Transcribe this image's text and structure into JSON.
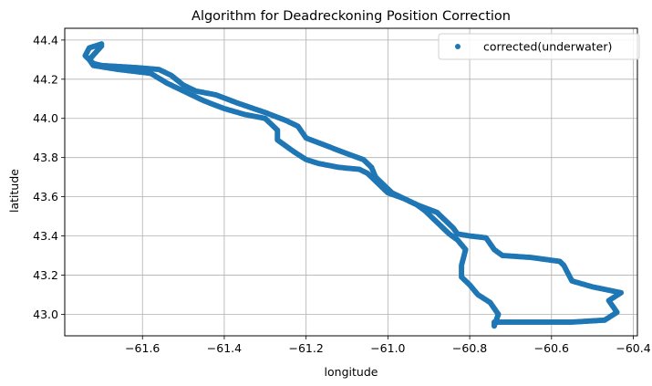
{
  "chart_data": {
    "type": "scatter",
    "title": "Algorithm for Deadreckoning Position Correction",
    "xlabel": "longitude",
    "ylabel": "latitude",
    "xlim": [
      -61.79,
      -60.39
    ],
    "ylim": [
      42.89,
      44.46
    ],
    "xticks": [
      -61.6,
      -61.4,
      -61.2,
      -61.0,
      -60.8,
      -60.6,
      -60.4
    ],
    "yticks": [
      43.0,
      43.2,
      43.4,
      43.6,
      43.8,
      44.0,
      44.2,
      44.4
    ],
    "xtick_labels": [
      "−61.6",
      "−61.4",
      "−61.2",
      "−61.0",
      "−60.8",
      "−60.6",
      "−60.4"
    ],
    "ytick_labels": [
      "43.0",
      "43.2",
      "43.4",
      "43.6",
      "43.8",
      "44.0",
      "44.2",
      "44.4"
    ],
    "grid": true,
    "legend_position": "top-right",
    "series": [
      {
        "name": "corrected(underwater)",
        "color": "#1f77b4",
        "x": [
          -61.7,
          -61.73,
          -61.74,
          -61.72,
          -61.7,
          -61.62,
          -61.56,
          -61.53,
          -61.5,
          -61.47,
          -61.42,
          -61.37,
          -61.3,
          -61.25,
          -61.22,
          -61.2,
          -61.15,
          -61.1,
          -61.06,
          -61.04,
          -61.03,
          -61.01,
          -60.99,
          -60.96,
          -60.93,
          -60.88,
          -60.86,
          -60.84,
          -60.83,
          -60.8,
          -60.76,
          -60.74,
          -60.72,
          -60.65,
          -60.58,
          -60.57,
          -60.55,
          -60.5,
          -60.43,
          -60.46,
          -60.44,
          -60.47,
          -60.55,
          -60.65,
          -60.74,
          -60.74,
          -60.73,
          -60.75,
          -60.78,
          -60.8,
          -60.82,
          -60.82,
          -60.81,
          -60.83,
          -60.85,
          -60.87,
          -60.91,
          -60.93,
          -60.96,
          -61.0,
          -61.02,
          -61.05,
          -61.07,
          -61.12,
          -61.17,
          -61.2,
          -61.23,
          -61.25,
          -61.27,
          -61.27,
          -61.3,
          -61.35,
          -61.4,
          -61.45,
          -61.48,
          -61.51,
          -61.54,
          -61.58,
          -61.66,
          -61.72,
          -61.73,
          -61.7
        ],
        "y": [
          44.38,
          44.36,
          44.32,
          44.28,
          44.27,
          44.26,
          44.25,
          44.22,
          44.17,
          44.14,
          44.12,
          44.08,
          44.03,
          43.99,
          43.96,
          43.9,
          43.86,
          43.82,
          43.79,
          43.75,
          43.7,
          43.66,
          43.62,
          43.59,
          43.56,
          43.52,
          43.48,
          43.44,
          43.41,
          43.4,
          43.39,
          43.33,
          43.3,
          43.29,
          43.27,
          43.25,
          43.17,
          43.14,
          43.11,
          43.07,
          43.01,
          42.97,
          42.96,
          42.96,
          42.96,
          42.94,
          43.0,
          43.06,
          43.1,
          43.15,
          43.19,
          43.25,
          43.33,
          43.38,
          43.41,
          43.45,
          43.53,
          43.56,
          43.59,
          43.62,
          43.66,
          43.72,
          43.74,
          43.75,
          43.77,
          43.79,
          43.83,
          43.86,
          43.89,
          43.94,
          44.0,
          44.02,
          44.05,
          44.09,
          44.12,
          44.15,
          44.18,
          44.23,
          44.25,
          44.27,
          44.3,
          44.37
        ]
      }
    ]
  }
}
